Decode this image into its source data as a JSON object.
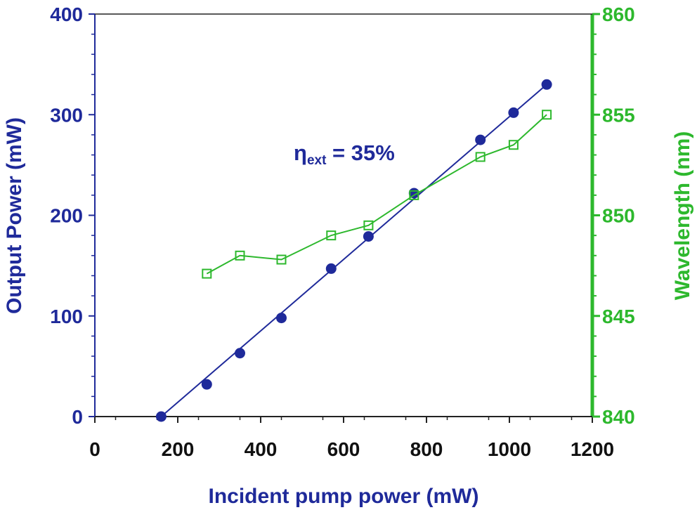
{
  "chart_data": {
    "type": "scatter",
    "xlabel": "Incident pump power (mW)",
    "ylabel": "Output Power (mW)",
    "y2label": "Wavelength (nm)",
    "xlim": [
      0,
      1200
    ],
    "ylim": [
      0,
      400
    ],
    "y2lim": [
      840,
      860
    ],
    "x_ticks": [
      "0",
      "200",
      "400",
      "600",
      "800",
      "1000",
      "1200"
    ],
    "y_ticks": [
      "0",
      "100",
      "200",
      "300",
      "400"
    ],
    "y2_ticks": [
      "840",
      "845",
      "850",
      "855",
      "860"
    ],
    "grid": false,
    "annotation": {
      "symbol": "η",
      "subscript": "ext",
      "text": " = 35%"
    },
    "colors": {
      "output": "#1f2a9a",
      "wavelength": "#2db82d"
    },
    "series": [
      {
        "axis": "left",
        "marker": "filled-circle",
        "x": [
          160,
          270,
          350,
          450,
          570,
          660,
          770,
          930,
          1010,
          1090
        ],
        "y": [
          0,
          32,
          63,
          98,
          147,
          179,
          222,
          275,
          302,
          330
        ]
      },
      {
        "axis": "left",
        "marker": "none",
        "line": "fit",
        "x": [
          160,
          1090
        ],
        "y": [
          0,
          330
        ]
      },
      {
        "axis": "right",
        "marker": "open-square",
        "x": [
          270,
          350,
          450,
          570,
          660,
          770,
          930,
          1010,
          1090
        ],
        "y": [
          847.1,
          848.0,
          847.8,
          849.0,
          849.5,
          851.0,
          852.9,
          853.5,
          855.0
        ]
      }
    ]
  }
}
